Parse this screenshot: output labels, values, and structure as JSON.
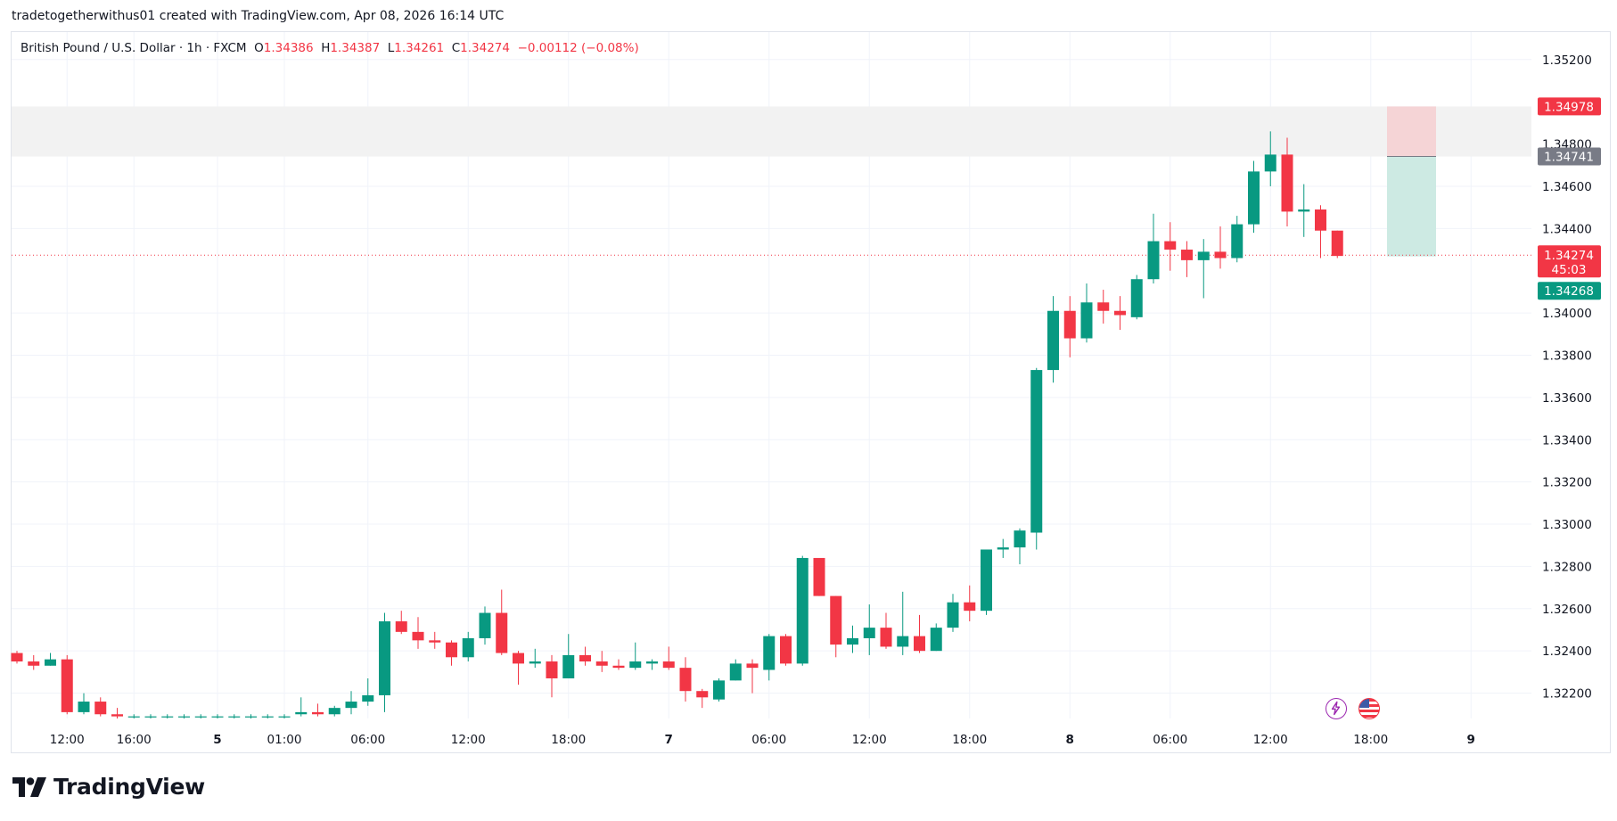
{
  "header": {
    "attribution": "tradetogetherwithus01 created with TradingView.com, Apr 08, 2026 16:14 UTC"
  },
  "legend": {
    "symbol": "British Pound / U.S. Dollar · 1h · FXCM",
    "o_label": "O",
    "o_value": "1.34386",
    "h_label": "H",
    "h_value": "1.34387",
    "l_label": "L",
    "l_value": "1.34261",
    "c_label": "C",
    "c_value": "1.34274",
    "change": "−0.00112 (−0.08%)"
  },
  "price_tags": {
    "stop": "1.34978",
    "entry": "1.34741",
    "current": "1.34274",
    "countdown": "45:03",
    "target": "1.34268"
  },
  "brand": {
    "name": "TradingView"
  },
  "colors": {
    "up": "#089981",
    "down": "#f23645",
    "grid": "#f0f3fa",
    "entry_tag": "#787b86",
    "zone": "#f2f2f2",
    "risk_fill": "#f5d4d6",
    "reward_fill": "#cdeae3"
  },
  "icons": {
    "event_left": "lightning-icon",
    "event_right": "us-flag-icon"
  },
  "chart_data": {
    "type": "candlestick",
    "symbol": "GBPUSD",
    "interval": "1h",
    "ylim": [
      1.3208,
      1.3533
    ],
    "y_ticks": [
      "1.35200",
      "1.34800",
      "1.34600",
      "1.34400",
      "1.34000",
      "1.33800",
      "1.33600",
      "1.33400",
      "1.33200",
      "1.33000",
      "1.32800",
      "1.32600",
      "1.32400",
      "1.32200"
    ],
    "x_ticks": [
      {
        "label": "12:00",
        "i": 3,
        "bold": false
      },
      {
        "label": "16:00",
        "i": 7,
        "bold": false
      },
      {
        "label": "5",
        "i": 12,
        "bold": true
      },
      {
        "label": "01:00",
        "i": 16,
        "bold": false
      },
      {
        "label": "06:00",
        "i": 21,
        "bold": false
      },
      {
        "label": "12:00",
        "i": 27,
        "bold": false
      },
      {
        "label": "18:00",
        "i": 33,
        "bold": false
      },
      {
        "label": "7",
        "i": 39,
        "bold": true
      },
      {
        "label": "06:00",
        "i": 45,
        "bold": false
      },
      {
        "label": "12:00",
        "i": 51,
        "bold": false
      },
      {
        "label": "18:00",
        "i": 57,
        "bold": false
      },
      {
        "label": "8",
        "i": 63,
        "bold": true
      },
      {
        "label": "06:00",
        "i": 69,
        "bold": false
      },
      {
        "label": "12:00",
        "i": 75,
        "bold": false
      },
      {
        "label": "18:00",
        "i": 81,
        "bold": false
      },
      {
        "label": "9",
        "i": 87,
        "bold": true
      }
    ],
    "ohlc": [
      [
        1.3239,
        1.324,
        1.3234,
        1.3235
      ],
      [
        1.3235,
        1.3238,
        1.3231,
        1.3233
      ],
      [
        1.3233,
        1.3239,
        1.3233,
        1.3236
      ],
      [
        1.3236,
        1.3238,
        1.321,
        1.3211
      ],
      [
        1.3211,
        1.322,
        1.321,
        1.3216
      ],
      [
        1.3216,
        1.3218,
        1.3209,
        1.321
      ],
      [
        1.321,
        1.3213,
        1.3208,
        1.3209
      ],
      [
        1.3209,
        1.321,
        1.3208,
        1.3209
      ],
      [
        1.3209,
        1.321,
        1.3208,
        1.3209
      ],
      [
        1.3209,
        1.321,
        1.3208,
        1.3209
      ],
      [
        1.3209,
        1.321,
        1.3208,
        1.3209
      ],
      [
        1.3209,
        1.321,
        1.3208,
        1.3209
      ],
      [
        1.3209,
        1.321,
        1.3208,
        1.3209
      ],
      [
        1.3209,
        1.321,
        1.3208,
        1.3209
      ],
      [
        1.3209,
        1.321,
        1.3208,
        1.3209
      ],
      [
        1.3209,
        1.321,
        1.3208,
        1.3209
      ],
      [
        1.3209,
        1.321,
        1.3208,
        1.3209
      ],
      [
        1.321,
        1.3218,
        1.3209,
        1.3211
      ],
      [
        1.3211,
        1.3215,
        1.3209,
        1.321
      ],
      [
        1.321,
        1.3214,
        1.3209,
        1.3213
      ],
      [
        1.3213,
        1.3221,
        1.321,
        1.3216
      ],
      [
        1.3216,
        1.3227,
        1.3214,
        1.3219
      ],
      [
        1.3219,
        1.3258,
        1.3211,
        1.3254
      ],
      [
        1.3254,
        1.3259,
        1.3248,
        1.3249
      ],
      [
        1.3249,
        1.3256,
        1.3241,
        1.3245
      ],
      [
        1.3245,
        1.3249,
        1.3241,
        1.3244
      ],
      [
        1.3244,
        1.3245,
        1.3233,
        1.3237
      ],
      [
        1.3237,
        1.3249,
        1.3235,
        1.3246
      ],
      [
        1.3246,
        1.3261,
        1.3243,
        1.3258
      ],
      [
        1.3258,
        1.3269,
        1.3238,
        1.3239
      ],
      [
        1.3239,
        1.324,
        1.3224,
        1.3234
      ],
      [
        1.3234,
        1.3241,
        1.3232,
        1.3235
      ],
      [
        1.3235,
        1.3238,
        1.3218,
        1.3227
      ],
      [
        1.3227,
        1.3248,
        1.3227,
        1.3238
      ],
      [
        1.3238,
        1.3242,
        1.3233,
        1.3235
      ],
      [
        1.3235,
        1.324,
        1.323,
        1.3233
      ],
      [
        1.3233,
        1.3236,
        1.3231,
        1.3232
      ],
      [
        1.3232,
        1.3244,
        1.3231,
        1.3235
      ],
      [
        1.3234,
        1.3236,
        1.3231,
        1.3235
      ],
      [
        1.3235,
        1.3242,
        1.3231,
        1.3232
      ],
      [
        1.3232,
        1.3237,
        1.3216,
        1.3221
      ],
      [
        1.3221,
        1.3222,
        1.3213,
        1.3218
      ],
      [
        1.3217,
        1.3227,
        1.3216,
        1.3226
      ],
      [
        1.3226,
        1.3236,
        1.3226,
        1.3234
      ],
      [
        1.3234,
        1.3236,
        1.322,
        1.3232
      ],
      [
        1.3231,
        1.3248,
        1.3226,
        1.3247
      ],
      [
        1.3247,
        1.3248,
        1.3233,
        1.3234
      ],
      [
        1.3234,
        1.3285,
        1.3233,
        1.3284
      ],
      [
        1.3284,
        1.3284,
        1.3266,
        1.3266
      ],
      [
        1.3266,
        1.3266,
        1.3237,
        1.3243
      ],
      [
        1.3243,
        1.3252,
        1.3239,
        1.3246
      ],
      [
        1.3246,
        1.3262,
        1.3238,
        1.3251
      ],
      [
        1.3251,
        1.3258,
        1.3241,
        1.3242
      ],
      [
        1.3242,
        1.3268,
        1.3238,
        1.3247
      ],
      [
        1.3247,
        1.3257,
        1.3239,
        1.324
      ],
      [
        1.324,
        1.3253,
        1.324,
        1.3251
      ],
      [
        1.3251,
        1.3267,
        1.3249,
        1.3263
      ],
      [
        1.3263,
        1.3271,
        1.3254,
        1.3259
      ],
      [
        1.3259,
        1.3288,
        1.3257,
        1.3288
      ],
      [
        1.3288,
        1.3293,
        1.3284,
        1.3289
      ],
      [
        1.3289,
        1.3298,
        1.3281,
        1.3297
      ],
      [
        1.3296,
        1.3374,
        1.3288,
        1.3373
      ],
      [
        1.3373,
        1.3408,
        1.3367,
        1.3401
      ],
      [
        1.3401,
        1.3408,
        1.3379,
        1.3388
      ],
      [
        1.3388,
        1.3414,
        1.3386,
        1.3405
      ],
      [
        1.3405,
        1.3411,
        1.3395,
        1.3401
      ],
      [
        1.3401,
        1.3408,
        1.3392,
        1.3399
      ],
      [
        1.3398,
        1.3418,
        1.3397,
        1.3416
      ],
      [
        1.3416,
        1.3447,
        1.3414,
        1.3434
      ],
      [
        1.3434,
        1.3443,
        1.342,
        1.343
      ],
      [
        1.343,
        1.3434,
        1.3417,
        1.3425
      ],
      [
        1.3425,
        1.3435,
        1.3407,
        1.3429
      ],
      [
        1.3429,
        1.3441,
        1.3421,
        1.3426
      ],
      [
        1.3426,
        1.3446,
        1.3424,
        1.3442
      ],
      [
        1.3442,
        1.3472,
        1.3438,
        1.3467
      ],
      [
        1.3467,
        1.3486,
        1.346,
        1.3475
      ],
      [
        1.3475,
        1.3483,
        1.3441,
        1.3448
      ],
      [
        1.3448,
        1.3461,
        1.3436,
        1.3449
      ],
      [
        1.3449,
        1.3451,
        1.3426,
        1.3439
      ],
      [
        1.3439,
        1.3439,
        1.3426,
        1.3427
      ]
    ],
    "position": {
      "type": "short",
      "stop": 1.34978,
      "entry": 1.34741,
      "target": 1.34268
    },
    "zone": {
      "top": 1.34978,
      "bottom": 1.34741
    },
    "last_price": 1.34274
  }
}
